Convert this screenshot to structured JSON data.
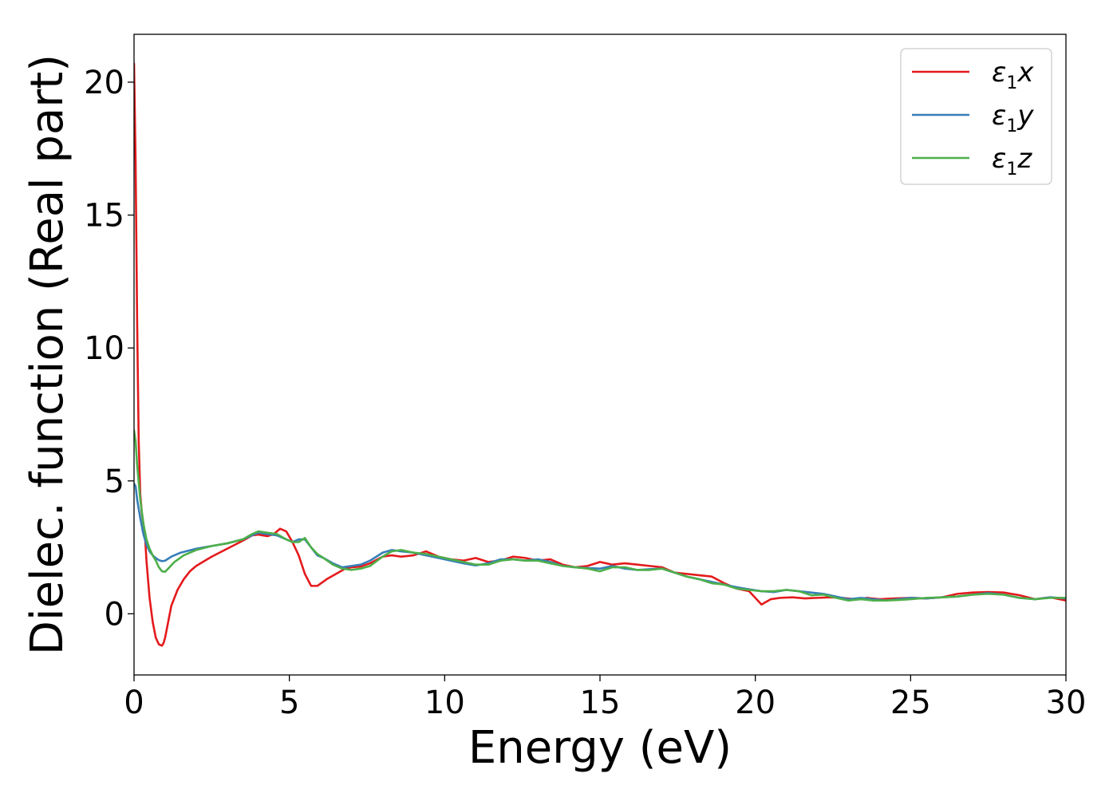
{
  "chart_data": {
    "type": "line",
    "title": "",
    "xlabel": "Energy (eV)",
    "ylabel": "Dielec. function (Real part)",
    "xlim": [
      0,
      30
    ],
    "ylim": [
      -2.3,
      21.8
    ],
    "xticks": [
      0,
      5,
      10,
      15,
      20,
      25,
      30
    ],
    "yticks": [
      0,
      5,
      10,
      15,
      20
    ],
    "grid": false,
    "legend": "top-right",
    "series": [
      {
        "name": "ε1x",
        "name_base": "ε",
        "name_sub": "1",
        "name_var": "x",
        "color": "#e41a1c",
        "x": [
          0,
          0.05,
          0.1,
          0.15,
          0.2,
          0.25,
          0.3,
          0.35,
          0.4,
          0.5,
          0.6,
          0.7,
          0.8,
          0.9,
          0.95,
          1.0,
          1.1,
          1.2,
          1.4,
          1.6,
          1.8,
          2.0,
          2.5,
          3.0,
          3.5,
          3.8,
          4.0,
          4.3,
          4.5,
          4.7,
          4.9,
          5.1,
          5.3,
          5.5,
          5.7,
          5.9,
          6.2,
          6.5,
          6.8,
          7.0,
          7.3,
          7.6,
          8.0,
          8.3,
          8.6,
          9.0,
          9.4,
          9.8,
          10.2,
          10.6,
          11.0,
          11.4,
          11.8,
          12.2,
          12.6,
          13.0,
          13.4,
          13.8,
          14.2,
          14.6,
          15.0,
          15.4,
          15.8,
          16.2,
          16.6,
          17.0,
          17.4,
          17.8,
          18.2,
          18.6,
          19.0,
          19.4,
          19.8,
          20.0,
          20.2,
          20.5,
          20.8,
          21.2,
          21.6,
          22.0,
          22.4,
          22.8,
          23.2,
          23.6,
          24.0,
          24.5,
          25.0,
          25.5,
          26.0,
          26.5,
          27.0,
          27.5,
          28.0,
          28.5,
          29.0,
          29.5,
          30.0
        ],
        "y": [
          20.7,
          17.0,
          11.0,
          6.5,
          4.5,
          3.8,
          3.4,
          3.0,
          2.0,
          0.6,
          -0.3,
          -0.9,
          -1.15,
          -1.2,
          -1.1,
          -0.9,
          -0.3,
          0.3,
          0.9,
          1.3,
          1.6,
          1.8,
          2.15,
          2.45,
          2.75,
          2.95,
          2.98,
          2.92,
          3.0,
          3.2,
          3.1,
          2.7,
          2.2,
          1.5,
          1.05,
          1.05,
          1.3,
          1.5,
          1.7,
          1.75,
          1.78,
          1.9,
          2.15,
          2.2,
          2.15,
          2.2,
          2.35,
          2.15,
          2.05,
          2.0,
          2.1,
          1.95,
          2.0,
          2.15,
          2.1,
          2.0,
          2.05,
          1.85,
          1.75,
          1.8,
          1.95,
          1.85,
          1.9,
          1.85,
          1.8,
          1.75,
          1.55,
          1.5,
          1.45,
          1.4,
          1.15,
          0.95,
          0.85,
          0.6,
          0.35,
          0.55,
          0.6,
          0.62,
          0.58,
          0.6,
          0.62,
          0.6,
          0.55,
          0.6,
          0.55,
          0.58,
          0.6,
          0.58,
          0.62,
          0.75,
          0.8,
          0.82,
          0.8,
          0.7,
          0.55,
          0.62,
          0.5
        ]
      },
      {
        "name": "ε1y",
        "name_base": "ε",
        "name_sub": "1",
        "name_var": "y",
        "color": "#377eb8",
        "x": [
          0,
          0.05,
          0.1,
          0.2,
          0.3,
          0.4,
          0.5,
          0.6,
          0.7,
          0.8,
          0.9,
          1.0,
          1.2,
          1.5,
          2.0,
          2.5,
          3.0,
          3.5,
          3.8,
          4.0,
          4.3,
          4.6,
          4.9,
          5.1,
          5.3,
          5.5,
          5.7,
          5.9,
          6.1,
          6.4,
          6.7,
          7.0,
          7.3,
          7.6,
          8.0,
          8.3,
          8.6,
          9.0,
          9.4,
          9.8,
          10.2,
          10.6,
          11.0,
          11.4,
          11.8,
          12.2,
          12.6,
          13.0,
          13.4,
          13.8,
          14.2,
          14.6,
          15.0,
          15.4,
          15.8,
          16.2,
          16.6,
          17.0,
          17.4,
          17.8,
          18.2,
          18.6,
          19.0,
          19.4,
          19.8,
          20.2,
          20.6,
          21.0,
          21.4,
          21.8,
          22.2,
          22.6,
          23.0,
          23.4,
          23.8,
          24.2,
          24.6,
          25.0,
          25.5,
          26.0,
          26.5,
          27.0,
          27.5,
          28.0,
          28.5,
          29.0,
          29.5,
          30.0
        ],
        "y": [
          4.9,
          4.8,
          4.3,
          3.6,
          3.0,
          2.6,
          2.35,
          2.2,
          2.1,
          2.02,
          1.98,
          2.0,
          2.15,
          2.3,
          2.45,
          2.55,
          2.65,
          2.8,
          2.95,
          3.05,
          3.0,
          2.95,
          2.8,
          2.7,
          2.8,
          2.8,
          2.5,
          2.2,
          2.1,
          1.9,
          1.75,
          1.8,
          1.85,
          2.0,
          2.3,
          2.4,
          2.35,
          2.3,
          2.2,
          2.1,
          2.0,
          1.9,
          1.82,
          1.9,
          2.05,
          2.05,
          2.0,
          2.05,
          1.95,
          1.8,
          1.75,
          1.72,
          1.7,
          1.8,
          1.7,
          1.65,
          1.68,
          1.7,
          1.55,
          1.4,
          1.3,
          1.2,
          1.1,
          1.0,
          0.92,
          0.85,
          0.82,
          0.9,
          0.85,
          0.8,
          0.75,
          0.65,
          0.55,
          0.6,
          0.55,
          0.5,
          0.55,
          0.6,
          0.58,
          0.62,
          0.65,
          0.72,
          0.78,
          0.72,
          0.6,
          0.55,
          0.62,
          0.58
        ]
      },
      {
        "name": "ε1z",
        "name_base": "ε",
        "name_sub": "1",
        "name_var": "z",
        "color": "#4daf4a",
        "x": [
          0,
          0.05,
          0.1,
          0.2,
          0.3,
          0.4,
          0.5,
          0.6,
          0.7,
          0.8,
          0.9,
          1.0,
          1.1,
          1.3,
          1.6,
          2.0,
          2.5,
          3.0,
          3.5,
          3.8,
          4.0,
          4.3,
          4.6,
          4.9,
          5.1,
          5.3,
          5.5,
          5.7,
          5.9,
          6.1,
          6.4,
          6.7,
          7.0,
          7.3,
          7.6,
          8.0,
          8.3,
          8.6,
          9.0,
          9.4,
          9.8,
          10.2,
          10.6,
          11.0,
          11.4,
          11.8,
          12.2,
          12.6,
          13.0,
          13.4,
          13.8,
          14.2,
          14.6,
          15.0,
          15.4,
          15.8,
          16.2,
          16.6,
          17.0,
          17.4,
          17.8,
          18.2,
          18.6,
          19.0,
          19.4,
          19.8,
          20.2,
          20.6,
          21.0,
          21.4,
          21.8,
          22.2,
          22.6,
          23.0,
          23.4,
          23.8,
          24.2,
          24.6,
          25.0,
          25.5,
          26.0,
          26.5,
          27.0,
          27.5,
          28.0,
          28.5,
          29.0,
          29.5,
          30.0
        ],
        "y": [
          6.9,
          6.5,
          5.6,
          4.3,
          3.4,
          2.8,
          2.45,
          2.2,
          2.0,
          1.75,
          1.6,
          1.58,
          1.7,
          1.95,
          2.2,
          2.4,
          2.55,
          2.65,
          2.8,
          3.0,
          3.1,
          3.05,
          3.0,
          2.8,
          2.7,
          2.7,
          2.85,
          2.5,
          2.25,
          2.1,
          1.85,
          1.7,
          1.65,
          1.7,
          1.8,
          2.15,
          2.35,
          2.4,
          2.3,
          2.25,
          2.15,
          2.05,
          1.95,
          1.85,
          1.85,
          2.0,
          2.05,
          2.0,
          2.0,
          1.9,
          1.8,
          1.75,
          1.7,
          1.6,
          1.75,
          1.75,
          1.65,
          1.65,
          1.7,
          1.55,
          1.4,
          1.3,
          1.15,
          1.1,
          0.95,
          0.9,
          0.85,
          0.85,
          0.9,
          0.85,
          0.7,
          0.72,
          0.6,
          0.5,
          0.55,
          0.5,
          0.5,
          0.52,
          0.55,
          0.6,
          0.62,
          0.65,
          0.72,
          0.75,
          0.72,
          0.6,
          0.55,
          0.6,
          0.6
        ]
      }
    ]
  }
}
